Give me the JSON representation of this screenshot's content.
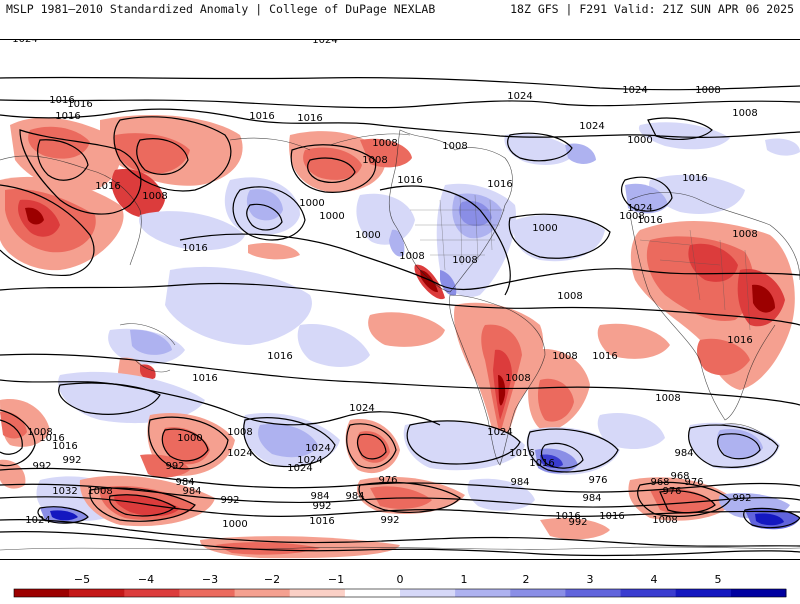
{
  "header": {
    "left_title": "MSLP 1981–2010 Standardized Anomaly | College of DuPage NEXLAB",
    "right_title": "18Z GFS | F291 Valid: 21Z SUN APR 06 2025"
  },
  "colorbar": {
    "ticks": [
      "−5",
      "−4",
      "−3",
      "−2",
      "−1",
      "0",
      "1",
      "2",
      "3",
      "4",
      "5"
    ],
    "colors": [
      "#9c0000",
      "#c41818",
      "#dc3c3c",
      "#eb6a5e",
      "#f5a090",
      "#fbd0c6",
      "#ffffff",
      "#d6d8f8",
      "#aeb2f0",
      "#8a8ee6",
      "#6164dc",
      "#3a3cd0",
      "#1418c0",
      "#0000a0"
    ]
  },
  "map": {
    "labels": [
      "1024",
      "1024",
      "1024",
      "1016",
      "1016",
      "1016",
      "1016",
      "1016",
      "1016",
      "1016",
      "1016",
      "1016",
      "1016",
      "1016",
      "1016",
      "1016",
      "1016",
      "1016",
      "1008",
      "1008",
      "1008",
      "1008",
      "1008",
      "1008",
      "1008",
      "1008",
      "1008",
      "1008",
      "1008",
      "1008",
      "1008",
      "1008",
      "1008",
      "1008",
      "1008",
      "1000",
      "1000",
      "1000",
      "1000",
      "1000",
      "1000",
      "1024",
      "1024",
      "1024",
      "1024",
      "1024",
      "1024",
      "1024",
      "1024",
      "1024",
      "1016",
      "1016",
      "1016",
      "1016",
      "992",
      "992",
      "992",
      "992",
      "992",
      "992",
      "992",
      "992",
      "984",
      "984",
      "984",
      "984",
      "984",
      "984",
      "984",
      "976",
      "976",
      "976",
      "976",
      "968",
      "968",
      "1032",
      "1016",
      "1016",
      "1016",
      "1024",
      "1008",
      "1000"
    ]
  }
}
